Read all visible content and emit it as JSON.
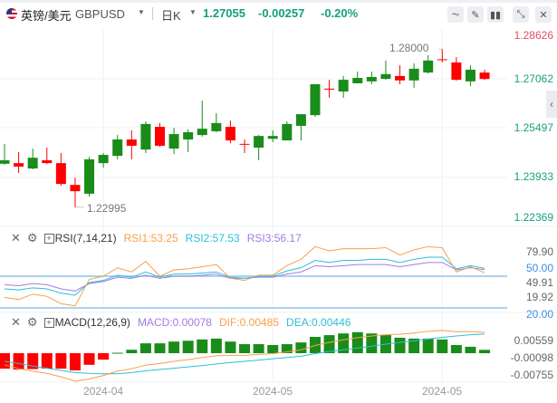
{
  "header": {
    "name": "英镑/美元",
    "symbol": "GBPUSD",
    "period": "日K",
    "price": "1.27055",
    "change": "-0.00257",
    "change_pct": "-0.20%",
    "tools": [
      "indicator-icon",
      "draw-icon",
      "candle-style-icon",
      "shrink-icon",
      "close-icon"
    ]
  },
  "colors": {
    "up": "#1a8c1a",
    "down": "#ff0000",
    "price_text": "#14a07a",
    "rsi1": "#f7a04a",
    "rsi2": "#2bbfd8",
    "rsi3": "#a07de0",
    "dif": "#f7a04a",
    "dea": "#2bbfd8",
    "ref": "#8fc4f0"
  },
  "price_axis": [
    "1.28626",
    "1.27062",
    "1.25497",
    "1.23933",
    "1.22369"
  ],
  "annotations": {
    "high": "1.28000",
    "low": "1.22995"
  },
  "rsi": {
    "title": "RSI(7,14,21)",
    "rsi1": "RSI1:53.25",
    "rsi2": "RSI2:57.53",
    "rsi3": "RSI3:56.17",
    "axis": [
      "79.90",
      "50.00",
      "49.91",
      "19.92",
      "20.00"
    ]
  },
  "macd": {
    "title": "MACD(12,26,9)",
    "macd": "MACD:0.00078",
    "dif": "DIF:0.00485",
    "dea": "DEA:0.00446",
    "axis": [
      "0.00559",
      "-0.00098",
      "-0.00755"
    ]
  },
  "dates": [
    "2024-04",
    "2024-05",
    "2024-05"
  ],
  "chart_data": {
    "type": "candlestick",
    "ohlc": [
      [
        1.2437,
        1.25,
        1.2434,
        1.2448
      ],
      [
        1.2439,
        1.2474,
        1.2408,
        1.2428
      ],
      [
        1.2422,
        1.2485,
        1.2419,
        1.2456
      ],
      [
        1.2448,
        1.2488,
        1.2436,
        1.2439
      ],
      [
        1.2439,
        1.2471,
        1.2367,
        1.2373
      ],
      [
        1.237,
        1.2393,
        1.22995,
        1.235
      ],
      [
        1.2342,
        1.2459,
        1.2333,
        1.2451
      ],
      [
        1.2439,
        1.2471,
        1.2425,
        1.2465
      ],
      [
        1.2462,
        1.2528,
        1.2451,
        1.2514
      ],
      [
        1.2514,
        1.2543,
        1.2451,
        1.2494
      ],
      [
        1.2482,
        1.2571,
        1.2471,
        1.2563
      ],
      [
        1.2554,
        1.2566,
        1.2491,
        1.2494
      ],
      [
        1.2485,
        1.2551,
        1.2468,
        1.2531
      ],
      [
        1.2514,
        1.2546,
        1.2474,
        1.2537
      ],
      [
        1.2528,
        1.2637,
        1.2523,
        1.2548
      ],
      [
        1.254,
        1.2597,
        1.2537,
        1.2566
      ],
      [
        1.2554,
        1.2574,
        1.2502,
        1.2511
      ],
      [
        1.25,
        1.2514,
        1.2471,
        1.2499
      ],
      [
        1.2488,
        1.2528,
        1.2448,
        1.2525
      ],
      [
        1.2516,
        1.2543,
        1.2505,
        1.2525
      ],
      [
        1.2511,
        1.2571,
        1.2511,
        1.2563
      ],
      [
        1.2557,
        1.2594,
        1.2511,
        1.2594
      ],
      [
        1.2591,
        1.2689,
        1.2586,
        1.2689
      ],
      [
        1.2675,
        1.2703,
        1.2646,
        1.2672
      ],
      [
        1.2666,
        1.2715,
        1.2646,
        1.2703
      ],
      [
        1.2692,
        1.2729,
        1.2692,
        1.2709
      ],
      [
        1.2698,
        1.2729,
        1.2689,
        1.2712
      ],
      [
        1.2706,
        1.2764,
        1.2703,
        1.2721
      ],
      [
        1.2715,
        1.2749,
        1.2689,
        1.2701
      ],
      [
        1.2701,
        1.2755,
        1.2678,
        1.2738
      ],
      [
        1.2726,
        1.2781,
        1.2723,
        1.2764
      ],
      [
        1.2768,
        1.28,
        1.2758,
        1.2766
      ],
      [
        1.2758,
        1.2775,
        1.27,
        1.2703
      ],
      [
        1.2698,
        1.2749,
        1.2683,
        1.2735
      ],
      [
        1.2726,
        1.2735,
        1.2703,
        1.27055
      ]
    ],
    "rsi1": [
      30,
      28,
      33,
      31,
      24,
      22,
      47,
      50,
      58,
      54,
      64,
      50,
      56,
      57,
      59,
      61,
      48,
      46,
      51,
      51,
      60,
      66,
      78,
      74,
      76,
      76,
      76,
      77,
      70,
      75,
      78,
      77,
      54,
      59,
      53.25
    ],
    "rsi2": [
      38,
      37,
      39,
      38,
      34,
      32,
      44,
      46,
      51,
      49,
      54,
      49,
      52,
      52,
      53,
      54,
      49,
      48,
      50,
      50,
      55,
      58,
      65,
      63,
      65,
      65,
      66,
      66,
      63,
      66,
      68,
      68,
      57,
      60,
      57.53
    ],
    "rsi3": [
      42,
      41,
      43,
      42,
      38,
      36,
      43,
      45,
      49,
      48,
      51,
      48,
      50,
      50,
      51,
      52,
      48,
      48,
      49,
      49,
      52,
      54,
      60,
      59,
      60,
      61,
      61,
      61,
      59,
      61,
      63,
      63,
      56,
      58,
      56.17
    ],
    "rsi_levels": [
      20,
      50,
      80
    ],
    "macd_hist": [
      -0.0036,
      -0.0038,
      -0.0037,
      -0.0036,
      -0.0036,
      -0.004,
      -0.0027,
      -0.0015,
      0.0001,
      0.0008,
      0.0023,
      0.0023,
      0.0027,
      0.0029,
      0.0032,
      0.0034,
      0.0027,
      0.0021,
      0.0021,
      0.0019,
      0.0021,
      0.0025,
      0.0038,
      0.0042,
      0.0046,
      0.0049,
      0.0046,
      0.0042,
      0.0036,
      0.0034,
      0.0034,
      0.0032,
      0.0019,
      0.0015,
      0.00078
    ],
    "dif": [
      -0.0027,
      -0.0036,
      -0.0042,
      -0.0047,
      -0.0055,
      -0.0065,
      -0.006,
      -0.0052,
      -0.0042,
      -0.0036,
      -0.0028,
      -0.0024,
      -0.0019,
      -0.0015,
      -0.001,
      -0.0006,
      -0.0005,
      -0.0005,
      -0.0003,
      -0.0001,
      0.0003,
      0.0008,
      0.0018,
      0.0025,
      0.0031,
      0.0036,
      0.004,
      0.0043,
      0.0044,
      0.0047,
      0.0051,
      0.0053,
      0.005,
      0.005,
      0.00485
    ],
    "dea": [
      -0.0019,
      -0.0024,
      -0.003,
      -0.0035,
      -0.004,
      -0.0045,
      -0.0047,
      -0.0048,
      -0.0048,
      -0.0045,
      -0.0041,
      -0.0038,
      -0.0035,
      -0.0032,
      -0.0029,
      -0.0025,
      -0.0022,
      -0.0019,
      -0.0016,
      -0.0013,
      -0.001,
      -0.0007,
      -0.0001,
      0.0004,
      0.0008,
      0.0012,
      0.0016,
      0.0021,
      0.0025,
      0.0029,
      0.0033,
      0.0037,
      0.004,
      0.0043,
      0.00446
    ]
  }
}
